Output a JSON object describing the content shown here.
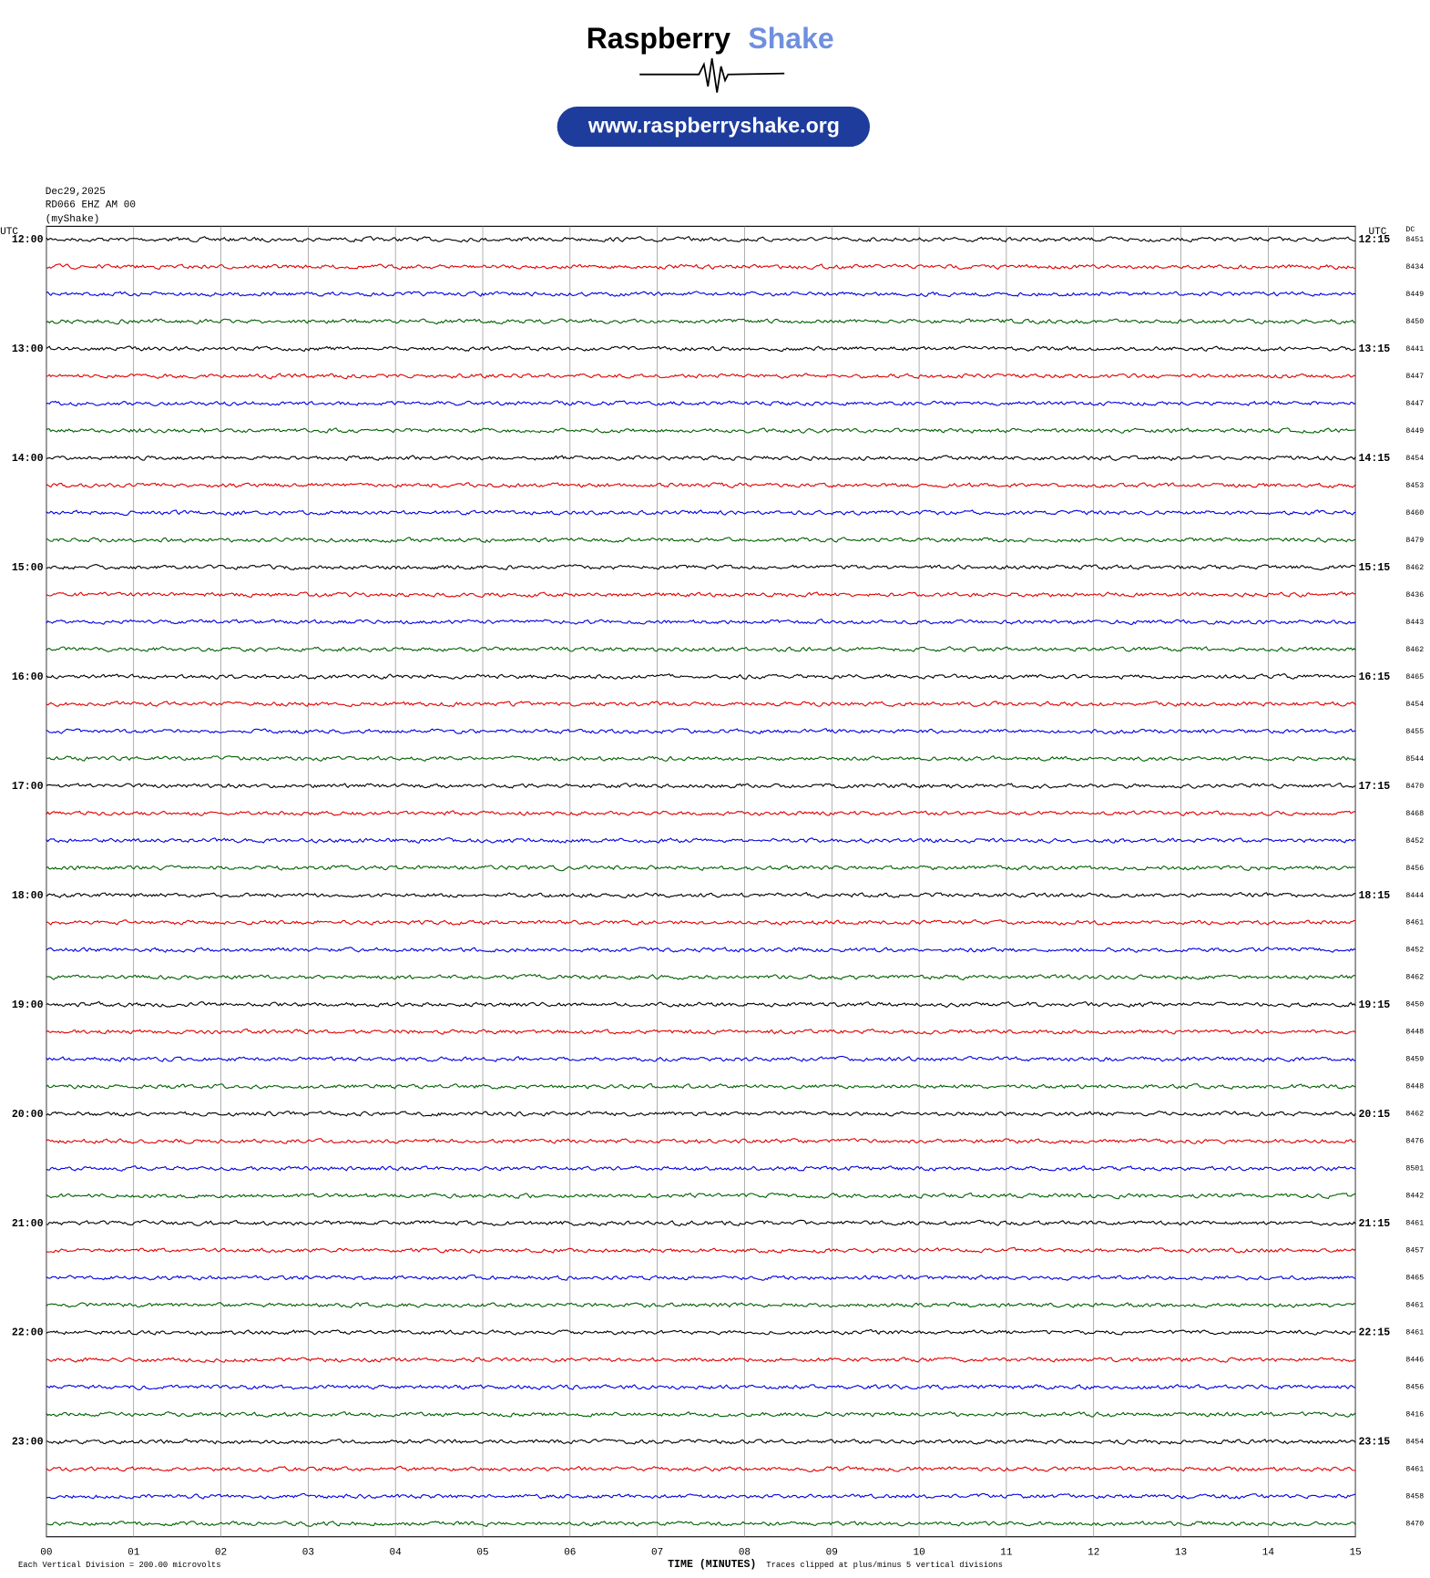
{
  "header": {
    "brand_first": "Raspberry",
    "brand_second": "Shake",
    "url": "www.raspberryshake.org"
  },
  "plot": {
    "date": "Dec29,2025",
    "station": "RD066 EHZ AM 00",
    "source": "(myShake)",
    "left_axis_title": "UTC",
    "right_axis_title": "UTC",
    "dc_title": "DC",
    "left_times": [
      "12:00",
      "13:00",
      "14:00",
      "15:00",
      "16:00",
      "17:00",
      "18:00",
      "19:00",
      "20:00",
      "21:00",
      "22:00",
      "23:00"
    ],
    "right_times": [
      "12:15",
      "13:15",
      "14:15",
      "15:15",
      "16:15",
      "17:15",
      "18:15",
      "19:15",
      "20:15",
      "21:15",
      "22:15",
      "23:15"
    ],
    "dc_values": [
      8451,
      8434,
      8449,
      8450,
      8441,
      8447,
      8447,
      8449,
      8454,
      8453,
      8460,
      8479,
      8462,
      8436,
      8443,
      8462,
      8465,
      8454,
      8455,
      8544,
      8470,
      8468,
      8452,
      8456,
      8444,
      8461,
      8452,
      8462,
      8450,
      8448,
      8459,
      8448,
      8462,
      8476,
      8501,
      8442,
      8461,
      8457,
      8465,
      8461,
      8461,
      8446,
      8456,
      8416,
      8454,
      8461,
      8458,
      8470
    ],
    "trace_colors": [
      "#000000",
      "#e00000",
      "#0000e0",
      "#006000"
    ],
    "x_ticks": [
      "00",
      "01",
      "02",
      "03",
      "04",
      "05",
      "06",
      "07",
      "08",
      "09",
      "10",
      "11",
      "12",
      "13",
      "14",
      "15"
    ],
    "x_axis_title": "TIME (MINUTES)",
    "scale_note": "Each Vertical Division =  200.00 microvolts",
    "clip_note": "Traces clipped at plus/minus 5 vertical divisions"
  }
}
